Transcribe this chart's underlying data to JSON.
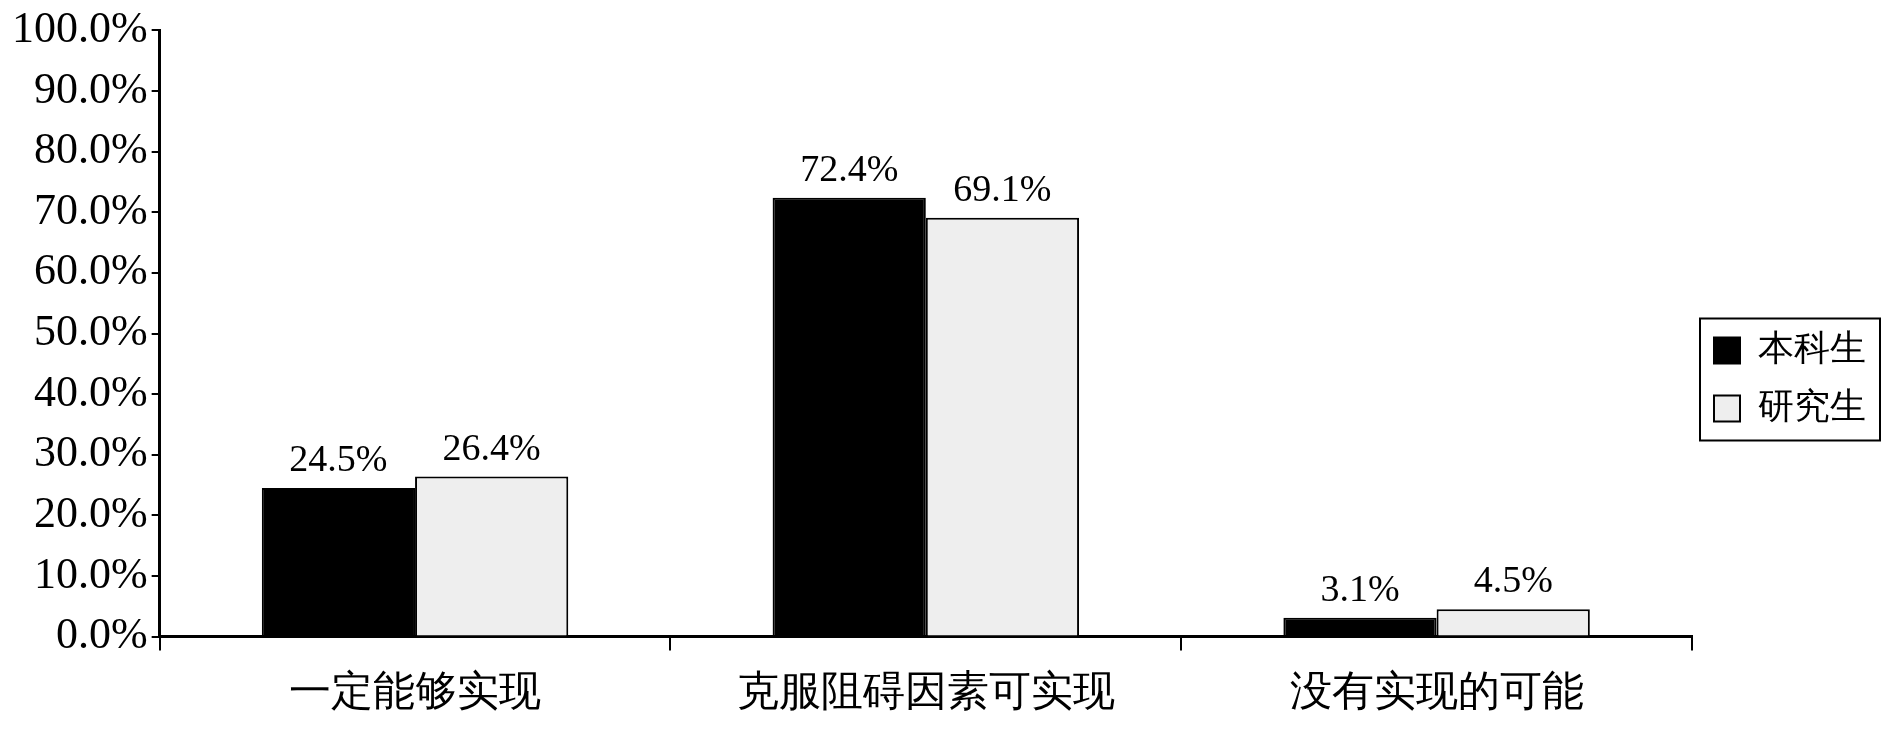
{
  "chart_data": {
    "type": "bar",
    "categories": [
      "一定能够实现",
      "克服阻碍因素可实现",
      "没有实现的可能"
    ],
    "series": [
      {
        "name": "本科生",
        "color": "#000000",
        "values": [
          24.5,
          72.4,
          3.1
        ],
        "value_labels": [
          "24.5%",
          "72.4%",
          "3.1%"
        ]
      },
      {
        "name": "研究生",
        "color": "#eeeeee",
        "values": [
          26.4,
          69.1,
          4.5
        ],
        "value_labels": [
          "26.4%",
          "69.1%",
          "4.5%"
        ]
      }
    ],
    "ylim": [
      0,
      100
    ],
    "yticks": [
      {
        "value": 0,
        "label": "0.0%"
      },
      {
        "value": 10,
        "label": "10.0%"
      },
      {
        "value": 20,
        "label": "20.0%"
      },
      {
        "value": 30,
        "label": "30.0%"
      },
      {
        "value": 40,
        "label": "40.0%"
      },
      {
        "value": 50,
        "label": "50.0%"
      },
      {
        "value": 60,
        "label": "60.0%"
      },
      {
        "value": 70,
        "label": "70.0%"
      },
      {
        "value": 80,
        "label": "80.0%"
      },
      {
        "value": 90,
        "label": "90.0%"
      },
      {
        "value": 100,
        "label": "100.0%"
      }
    ],
    "grid": false,
    "legend": "right"
  }
}
